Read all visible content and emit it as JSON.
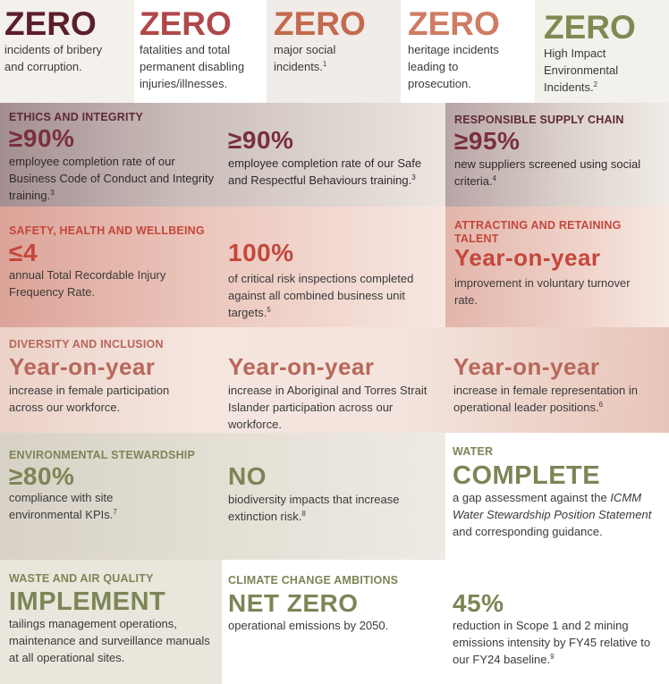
{
  "top": {
    "bribery": {
      "big": "ZERO",
      "text": "incidents of bribery and corruption."
    },
    "fatal": {
      "big": "ZERO",
      "text": "fatalities and total permanent disabling injuries/illnesses."
    },
    "social": {
      "big": "ZERO",
      "text": "major social incidents.",
      "note": "1"
    },
    "heritage": {
      "big": "ZERO",
      "text": "heritage incidents leading to prosecution."
    },
    "env": {
      "big": "ZERO",
      "text": "High Impact Environmental Incidents.",
      "note": "2"
    }
  },
  "ethics": {
    "heading": "ETHICS AND INTEGRITY",
    "a": {
      "big": "≥90%",
      "text": "employee completion rate of our Business Code of Conduct and Integrity training.",
      "note": "3"
    },
    "b": {
      "big": "≥90%",
      "text": "employee completion rate of our Safe and Respectful Behaviours training.",
      "note": "3"
    }
  },
  "supply": {
    "heading": "RESPONSIBLE SUPPLY CHAIN",
    "big": "≥95%",
    "text": "new suppliers screened using social criteria.",
    "note": "4"
  },
  "safety": {
    "heading": "SAFETY, HEALTH AND WELLBEING",
    "a": {
      "big": "≤4",
      "text": "annual Total Recordable Injury Frequency Rate."
    },
    "b": {
      "big": "100%",
      "text": "of critical risk inspections completed against all combined business unit targets.",
      "note": "5"
    }
  },
  "talent": {
    "heading_line1": "ATTRACTING AND RETAINING",
    "heading_line2": "TALENT",
    "big": "Year-on-year",
    "text": "improvement in voluntary turnover rate."
  },
  "diversity": {
    "heading": "DIVERSITY AND INCLUSION",
    "a": {
      "big": "Year-on-year",
      "text": "increase in female participation across our workforce."
    },
    "b": {
      "big": "Year-on-year",
      "text": "increase in Aboriginal and Torres Strait Islander participation across our workforce."
    },
    "c": {
      "big": "Year-on-year",
      "text": "increase in female representation in operational leader positions.",
      "note": "6"
    }
  },
  "envstew": {
    "heading": "ENVIRONMENTAL STEWARDSHIP",
    "a": {
      "big": "≥80%",
      "text": "compliance with site environmental KPIs.",
      "note": "7"
    },
    "b": {
      "big": "NO",
      "text": "biodiversity impacts that increase extinction risk.",
      "note": "8"
    }
  },
  "water": {
    "heading": "WATER",
    "big": "COMPLETE",
    "text_pre": "a gap assessment against the",
    "text_italic": "ICMM Water Stewardship Position Statement",
    "text_post": "and corresponding guidance."
  },
  "waste": {
    "heading": "WASTE AND AIR QUALITY",
    "big": "IMPLEMENT",
    "text": "tailings management operations, maintenance and surveillance manuals at all operational sites."
  },
  "climate": {
    "heading": "CLIMATE CHANGE AMBITIONS",
    "a": {
      "big": "NET ZERO",
      "text": "operational emissions by 2050."
    },
    "b": {
      "big": "45%",
      "text": "reduction in Scope 1 and 2 mining emissions intensity by FY45 relative to our FY24 baseline.",
      "note": "9"
    }
  },
  "colors": {
    "ethics": "#7a2f3e",
    "safety": "#c4473c",
    "diversity": "#b8675b",
    "environment": "#7d8556"
  }
}
